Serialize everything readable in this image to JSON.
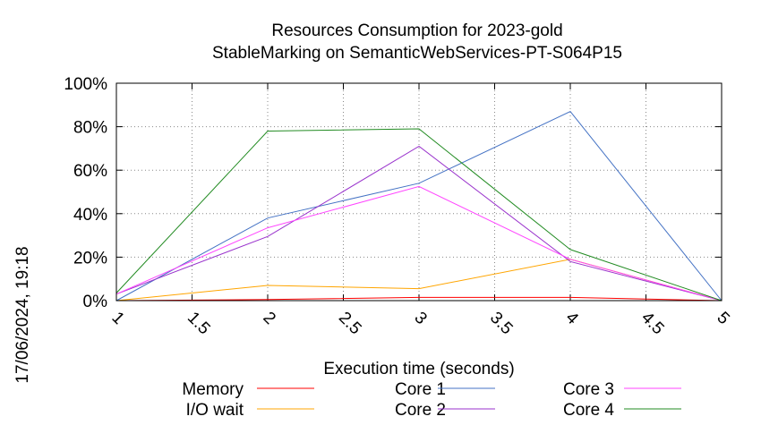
{
  "chart_data": {
    "type": "line",
    "title_line1": "Resources Consumption for 2023-gold",
    "title_line2": "StableMarking on SemanticWebServices-PT-S064P15",
    "xlabel": "Execution time (seconds)",
    "ylabel": "",
    "side_label": "17/06/2024, 19:18",
    "xlim": [
      1,
      5
    ],
    "ylim": [
      0,
      100
    ],
    "x_ticks": [
      "1",
      "1.5",
      "2",
      "2.5",
      "3",
      "3.5",
      "4",
      "4.5",
      "5"
    ],
    "x_tick_values": [
      1,
      1.5,
      2,
      2.5,
      3,
      3.5,
      4,
      4.5,
      5
    ],
    "y_ticks": [
      "0%",
      "20%",
      "40%",
      "60%",
      "80%",
      "100%"
    ],
    "y_tick_values": [
      0,
      20,
      40,
      60,
      80,
      100
    ],
    "grid": true,
    "legend_position": "bottom",
    "series": [
      {
        "name": "Memory",
        "color": "#ff0000",
        "x": [
          1,
          2,
          3,
          4,
          5
        ],
        "y": [
          0,
          0.5,
          1.5,
          1.5,
          0
        ]
      },
      {
        "name": "I/O wait",
        "color": "#ffa500",
        "x": [
          1,
          2,
          3,
          4,
          5
        ],
        "y": [
          0,
          7,
          5.5,
          19,
          0
        ]
      },
      {
        "name": "Core 1",
        "color": "#4472c4",
        "x": [
          1,
          2,
          3,
          4,
          5
        ],
        "y": [
          0,
          38,
          54,
          87,
          0
        ]
      },
      {
        "name": "Core 2",
        "color": "#9932cc",
        "x": [
          1,
          2,
          3,
          4,
          5
        ],
        "y": [
          3,
          29.5,
          71,
          18,
          0
        ]
      },
      {
        "name": "Core 3",
        "color": "#ff44ff",
        "x": [
          1,
          2,
          3,
          4,
          5
        ],
        "y": [
          3,
          33.5,
          52.5,
          19,
          0
        ]
      },
      {
        "name": "Core 4",
        "color": "#228b22",
        "x": [
          1,
          2,
          3,
          4,
          5
        ],
        "y": [
          3.5,
          78,
          79,
          23.5,
          0
        ]
      }
    ]
  }
}
